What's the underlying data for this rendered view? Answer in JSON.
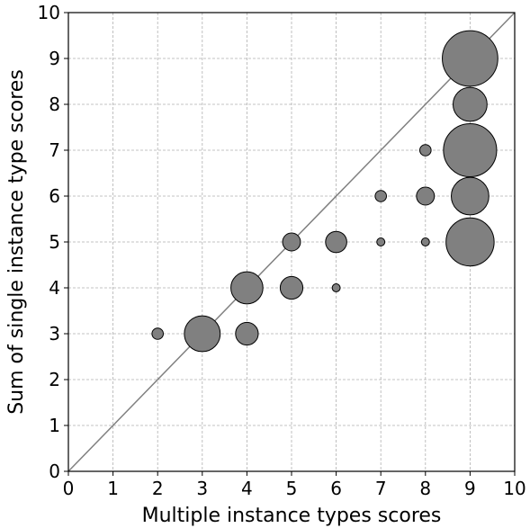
{
  "chart_data": {
    "type": "scatter",
    "title": "",
    "xlabel": "Multiple instance types scores",
    "ylabel": "Sum of single instance type scores",
    "xlim": [
      0,
      10
    ],
    "ylim": [
      0,
      10
    ],
    "xticks": [
      "0",
      "1",
      "2",
      "3",
      "4",
      "5",
      "6",
      "7",
      "8",
      "9",
      "10"
    ],
    "yticks": [
      "0",
      "1",
      "2",
      "3",
      "4",
      "5",
      "6",
      "7",
      "8",
      "9",
      "10"
    ],
    "grid": true,
    "reference_line": "y = x",
    "marker_color": "#808080",
    "reference_line_color": "#808080",
    "points": [
      {
        "x": 2,
        "y": 3,
        "relative_size": 1
      },
      {
        "x": 3,
        "y": 3,
        "relative_size": 10
      },
      {
        "x": 4,
        "y": 3,
        "relative_size": 4
      },
      {
        "x": 4,
        "y": 4,
        "relative_size": 8
      },
      {
        "x": 5,
        "y": 4,
        "relative_size": 4
      },
      {
        "x": 5,
        "y": 5,
        "relative_size": 2.5
      },
      {
        "x": 6,
        "y": 4,
        "relative_size": 0.5
      },
      {
        "x": 6,
        "y": 5,
        "relative_size": 3.5
      },
      {
        "x": 7,
        "y": 5,
        "relative_size": 0.5
      },
      {
        "x": 7,
        "y": 6,
        "relative_size": 1
      },
      {
        "x": 8,
        "y": 5,
        "relative_size": 0.5
      },
      {
        "x": 8,
        "y": 6,
        "relative_size": 2.5
      },
      {
        "x": 8,
        "y": 7,
        "relative_size": 1
      },
      {
        "x": 9,
        "y": 5,
        "relative_size": 18
      },
      {
        "x": 9,
        "y": 6,
        "relative_size": 11
      },
      {
        "x": 9,
        "y": 7,
        "relative_size": 22
      },
      {
        "x": 9,
        "y": 8,
        "relative_size": 9
      },
      {
        "x": 9,
        "y": 9,
        "relative_size": 24
      }
    ]
  }
}
